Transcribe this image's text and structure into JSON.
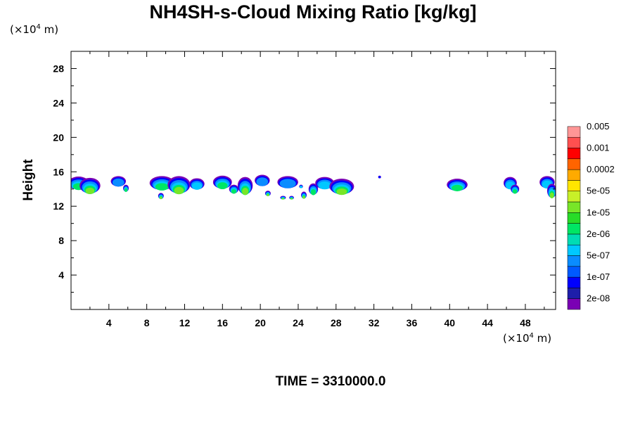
{
  "title": "NH4SH-s-Cloud Mixing Ratio [kg/kg]",
  "ylabel": "Height",
  "y_unit": {
    "prefix": "(×10",
    "exp": "4",
    "suffix": " m)"
  },
  "x_unit": {
    "prefix": "(×10",
    "exp": "4",
    "suffix": " m)"
  },
  "time_label": "TIME = 3310000.0",
  "chart_data": {
    "type": "heatmap",
    "title": "NH4SH-s-Cloud Mixing Ratio [kg/kg]",
    "ylabel": "Height",
    "xlabel": "",
    "xlim": [
      0,
      51.2
    ],
    "ylim": [
      0,
      30
    ],
    "x_ticks": [
      4,
      8,
      12,
      16,
      20,
      24,
      28,
      32,
      36,
      40,
      44,
      48
    ],
    "y_ticks": [
      4,
      8,
      12,
      16,
      20,
      24,
      28
    ],
    "color_levels": [
      "2e-08",
      "1e-07",
      "5e-07",
      "2e-06",
      "1e-05",
      "5e-05",
      "0.0002",
      "0.001",
      "0.005"
    ],
    "color_scale": [
      "#7a00b4",
      "#1e1eaa",
      "#0000ff",
      "#005aff",
      "#0a8cff",
      "#00c8ff",
      "#00dcb4",
      "#00e664",
      "#28dc28",
      "#78e628",
      "#c8f028",
      "#ffe600",
      "#ffaa00",
      "#ff6400",
      "#ff0000",
      "#ff5050",
      "#ff9696"
    ],
    "clouds": [
      {
        "x": 0.8,
        "y": 14.7,
        "w": 2.2,
        "h": 1.5,
        "core": 0.48
      },
      {
        "x": 2.0,
        "y": 14.4,
        "w": 2.2,
        "h": 1.8,
        "core": 0.58
      },
      {
        "x": 5.0,
        "y": 14.9,
        "w": 1.6,
        "h": 1.2,
        "core": 0.3
      },
      {
        "x": 5.8,
        "y": 14.1,
        "w": 0.6,
        "h": 0.8,
        "core": 0.48
      },
      {
        "x": 9.6,
        "y": 14.7,
        "w": 2.6,
        "h": 1.6,
        "core": 0.5
      },
      {
        "x": 11.4,
        "y": 14.5,
        "w": 2.4,
        "h": 2.0,
        "core": 0.62
      },
      {
        "x": 13.3,
        "y": 14.6,
        "w": 1.6,
        "h": 1.3,
        "core": 0.45
      },
      {
        "x": 9.5,
        "y": 13.2,
        "w": 0.6,
        "h": 0.7,
        "core": 0.6
      },
      {
        "x": 16.0,
        "y": 14.8,
        "w": 2.0,
        "h": 1.5,
        "core": 0.5
      },
      {
        "x": 17.2,
        "y": 14.0,
        "w": 1.0,
        "h": 1.0,
        "core": 0.55
      },
      {
        "x": 18.4,
        "y": 14.4,
        "w": 1.6,
        "h": 2.0,
        "core": 0.62
      },
      {
        "x": 20.2,
        "y": 15.0,
        "w": 1.6,
        "h": 1.3,
        "core": 0.35
      },
      {
        "x": 20.8,
        "y": 13.5,
        "w": 0.6,
        "h": 0.6,
        "core": 0.6
      },
      {
        "x": 22.9,
        "y": 14.8,
        "w": 2.2,
        "h": 1.4,
        "core": 0.3
      },
      {
        "x": 24.3,
        "y": 14.3,
        "w": 0.4,
        "h": 0.4,
        "core": 0.4
      },
      {
        "x": 22.4,
        "y": 13.0,
        "w": 0.6,
        "h": 0.4,
        "core": 0.6
      },
      {
        "x": 23.3,
        "y": 13.0,
        "w": 0.5,
        "h": 0.4,
        "core": 0.6
      },
      {
        "x": 24.6,
        "y": 13.3,
        "w": 0.6,
        "h": 0.8,
        "core": 0.6
      },
      {
        "x": 25.6,
        "y": 14.0,
        "w": 1.0,
        "h": 1.3,
        "core": 0.55
      },
      {
        "x": 26.8,
        "y": 14.7,
        "w": 2.0,
        "h": 1.4,
        "core": 0.45
      },
      {
        "x": 28.6,
        "y": 14.3,
        "w": 2.6,
        "h": 1.8,
        "core": 0.62
      },
      {
        "x": 32.6,
        "y": 15.4,
        "w": 0.3,
        "h": 0.3,
        "core": 0.2
      },
      {
        "x": 40.8,
        "y": 14.5,
        "w": 2.2,
        "h": 1.4,
        "core": 0.48
      },
      {
        "x": 46.4,
        "y": 14.7,
        "w": 1.4,
        "h": 1.4,
        "core": 0.4
      },
      {
        "x": 46.9,
        "y": 14.0,
        "w": 0.9,
        "h": 1.0,
        "core": 0.55
      },
      {
        "x": 50.3,
        "y": 14.8,
        "w": 1.6,
        "h": 1.4,
        "core": 0.4
      },
      {
        "x": 50.8,
        "y": 13.8,
        "w": 1.0,
        "h": 1.6,
        "core": 0.58
      }
    ]
  }
}
